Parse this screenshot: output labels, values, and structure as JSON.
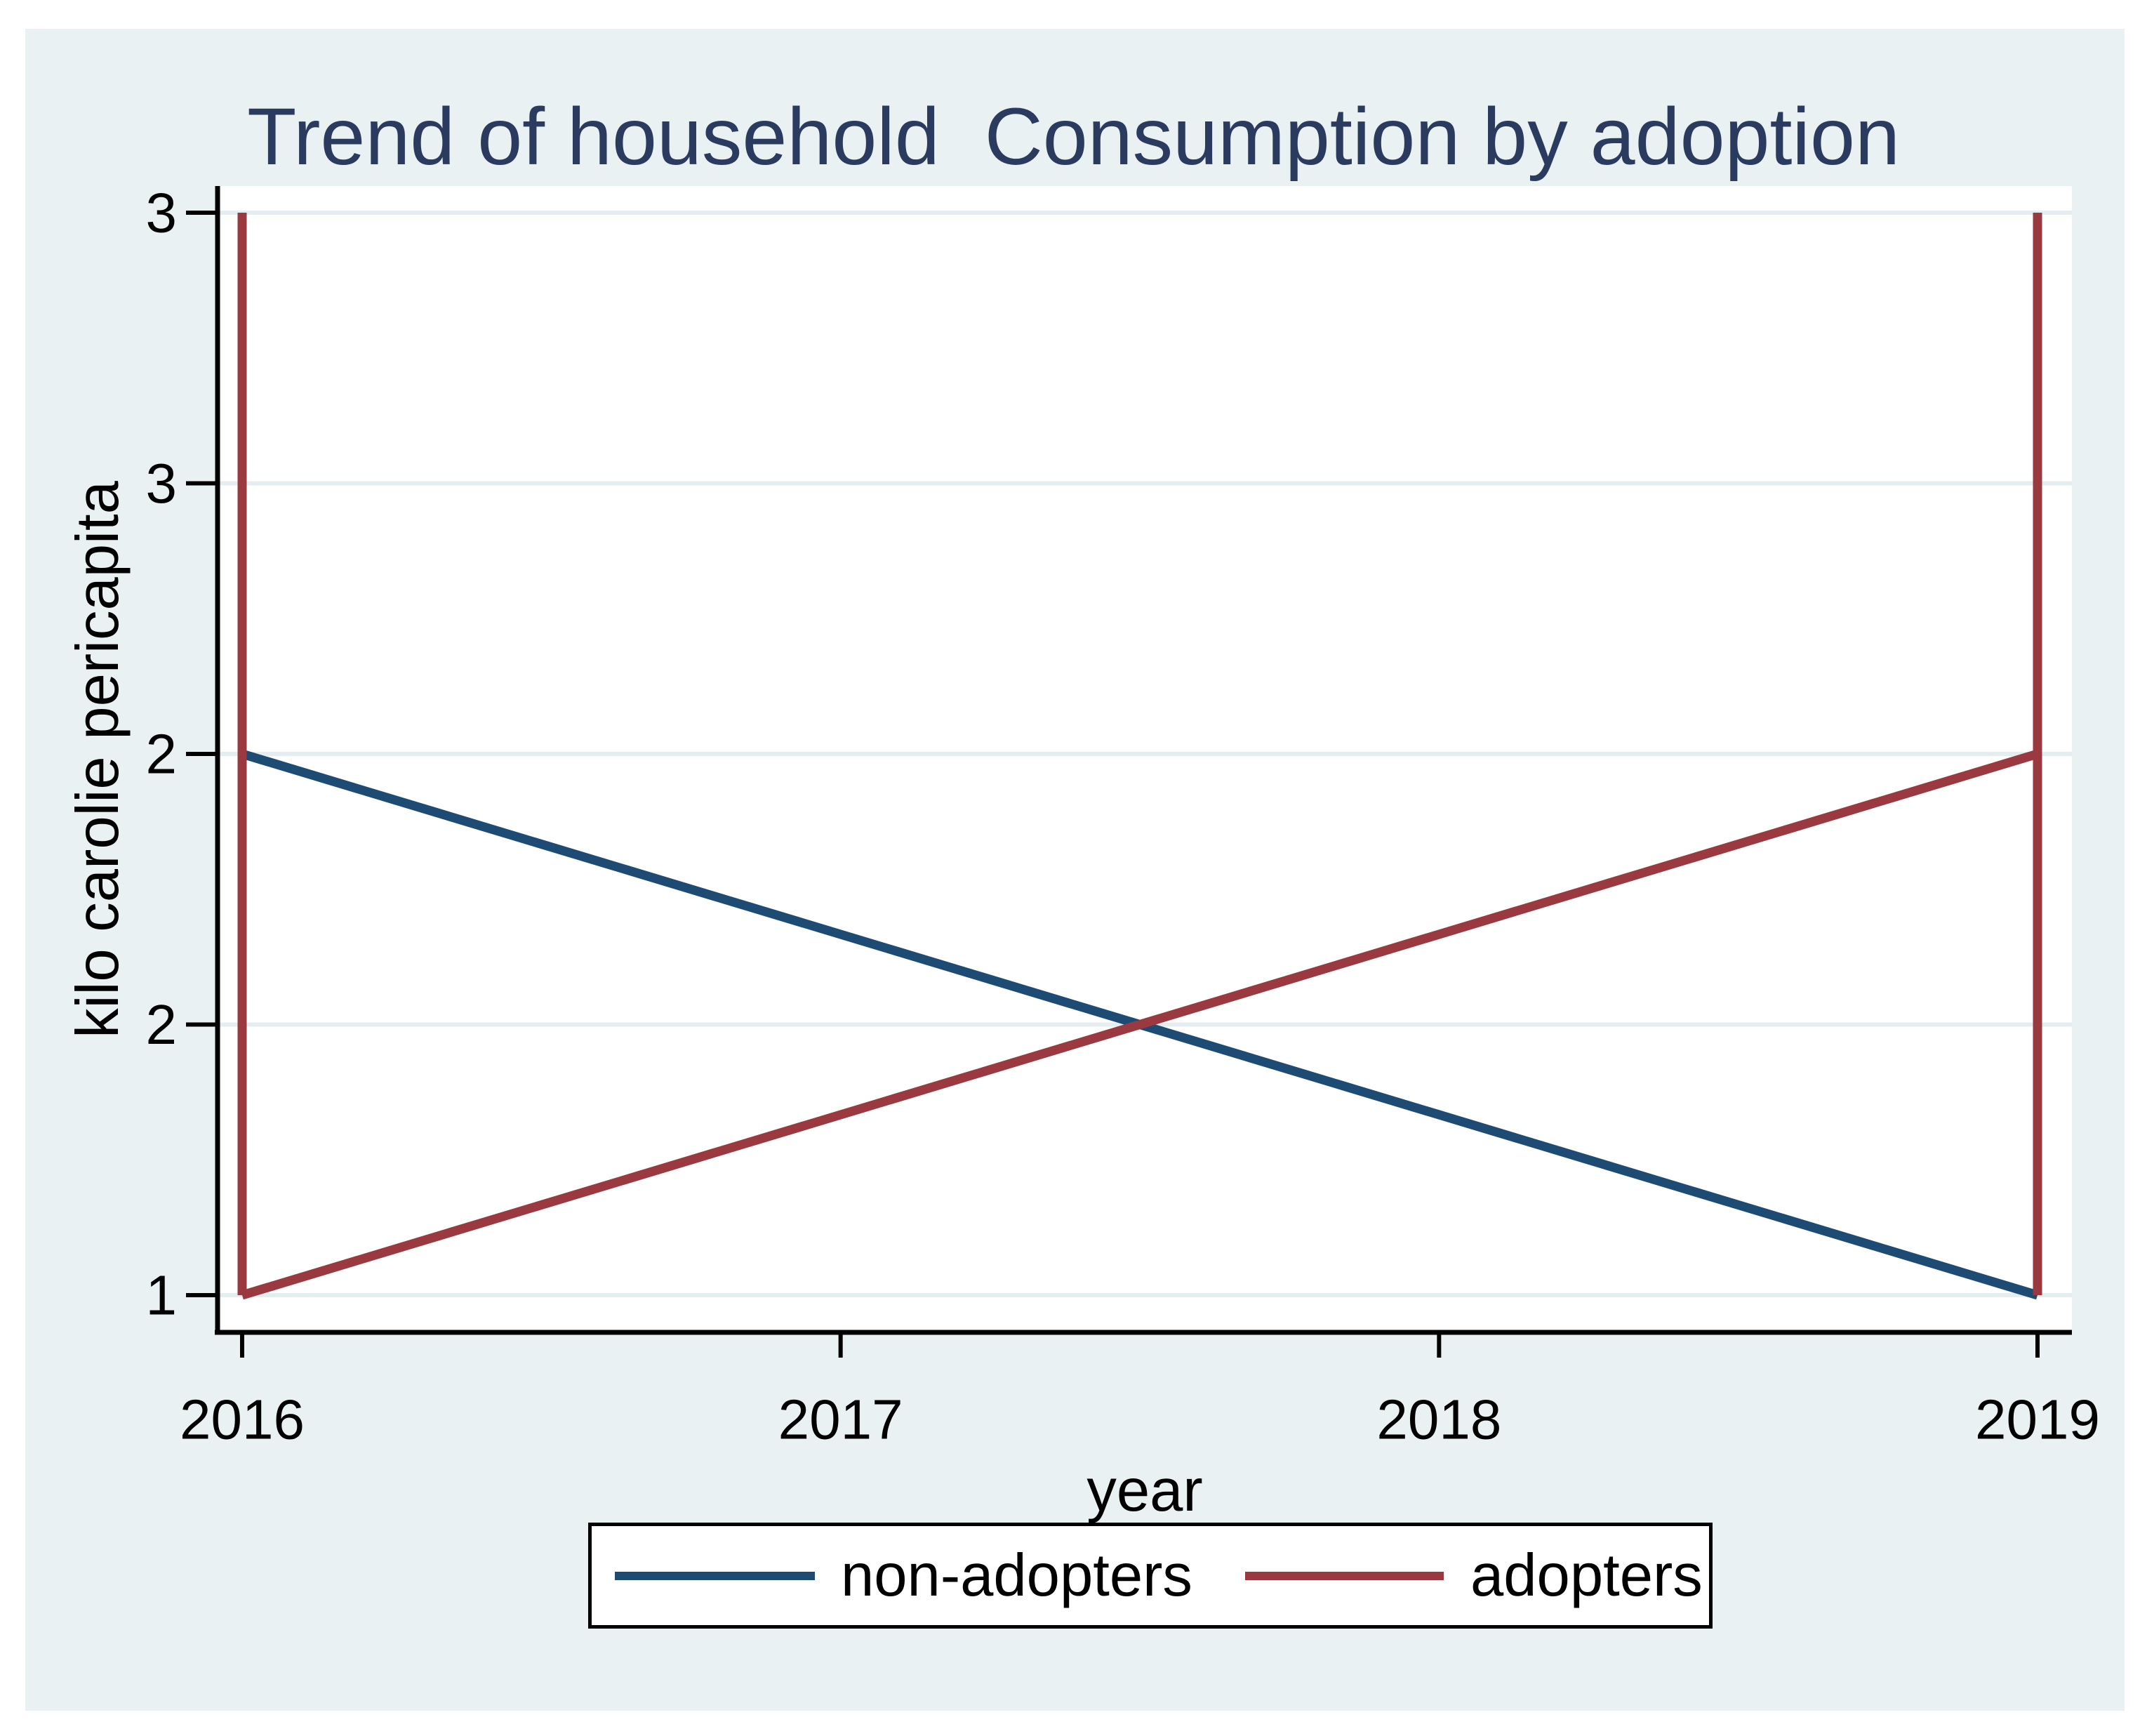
{
  "chart_data": {
    "type": "line",
    "title": "Trend of household  Consumption by adoption",
    "xlabel": "year",
    "ylabel": "kilo carolie pericapita",
    "xlim": [
      2015.96,
      2019.06
    ],
    "ylim": [
      0.93,
      3.07
    ],
    "grid": "horizontal",
    "legend_position": "bottom",
    "x_ticks": [
      {
        "value": 2016,
        "label": "2016"
      },
      {
        "value": 2017,
        "label": "2017"
      },
      {
        "value": 2018,
        "label": "2018"
      },
      {
        "value": 2019,
        "label": "2019"
      }
    ],
    "y_ticks": [
      {
        "value": 3.0,
        "label": "3"
      },
      {
        "value": 2.5,
        "label": "3"
      },
      {
        "value": 2.0,
        "label": "2"
      },
      {
        "value": 1.5,
        "label": "2"
      },
      {
        "value": 1.0,
        "label": "1"
      }
    ],
    "series": [
      {
        "name": "non-adopters",
        "color": "#1d4b73",
        "points": [
          [
            2016,
            2
          ],
          [
            2019,
            1
          ]
        ]
      },
      {
        "name": "adopters",
        "color": "#9a3a40",
        "points": [
          [
            2016,
            1
          ],
          [
            2019,
            2
          ]
        ],
        "vertical_lines": [
          {
            "x": 2016,
            "y_from": 1,
            "y_to": 3
          },
          {
            "x": 2019,
            "y_from": 1,
            "y_to": 3
          }
        ]
      }
    ]
  },
  "colors": {
    "canvas_background": "#e9f1f2",
    "plot_background": "#ffffff",
    "gridline": "#e4eef1",
    "axis": "#000000",
    "title_text": "#2b3b60",
    "tick_text": "#000000"
  }
}
